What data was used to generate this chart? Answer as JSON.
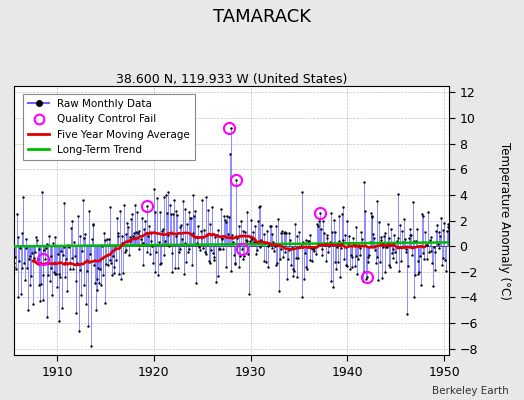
{
  "title": "TAMARACK",
  "subtitle": "38.600 N, 119.933 W (United States)",
  "ylabel": "Temperature Anomaly (°C)",
  "credit": "Berkeley Earth",
  "xlim": [
    1905.5,
    1950.5
  ],
  "ylim": [
    -8.5,
    12.5
  ],
  "yticks": [
    -8,
    -6,
    -4,
    -2,
    0,
    2,
    4,
    6,
    8,
    10,
    12
  ],
  "xticks": [
    1910,
    1920,
    1930,
    1940,
    1950
  ],
  "raw_line_color": "#6666ff",
  "raw_dot_color": "#000000",
  "ma_color": "#dd0000",
  "trend_color": "#00bb00",
  "qc_color": "#ff00ff",
  "bg_color": "#e8e8e8",
  "plot_bg": "#ffffff",
  "seed": 17,
  "start_year": 1905.0,
  "n_months": 546,
  "qc_points": [
    [
      1908.5,
      -1.0
    ],
    [
      1919.3,
      3.1
    ],
    [
      1927.8,
      9.2
    ],
    [
      1928.5,
      5.2
    ],
    [
      1929.1,
      -0.2
    ],
    [
      1937.2,
      2.6
    ],
    [
      1942.0,
      -2.4
    ]
  ]
}
